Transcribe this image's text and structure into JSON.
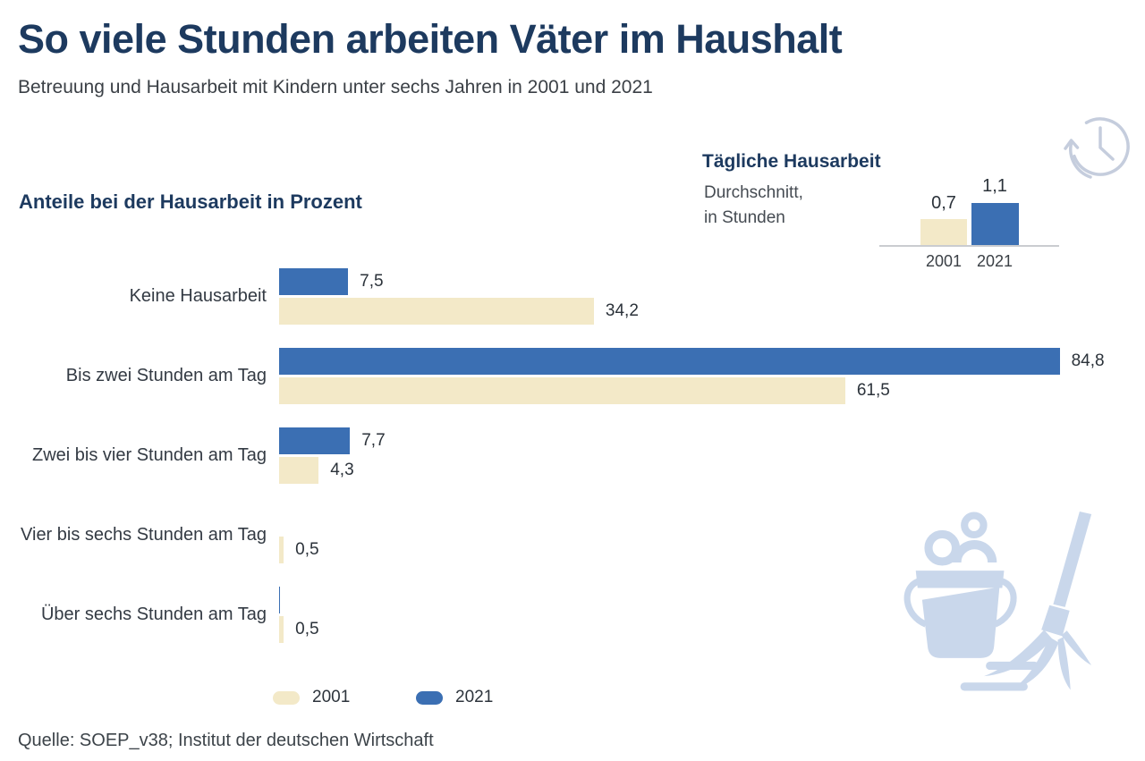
{
  "page": {
    "title": "So viele Stunden arbeiten Väter im Haushalt",
    "subtitle": "Betreuung und Hausarbeit mit Kindern unter sechs Jahren in 2001 und 2021",
    "source": "Quelle: SOEP_v38; Institut der deutschen Wirtschaft"
  },
  "colors": {
    "navy_heading": "#1d3a5f",
    "bar_blue_2021": "#3b6fb3",
    "bar_cream_2001": "#f3e9c8",
    "decorative_light_blue": "#c9d7eb",
    "clock_stroke": "#c5cddd",
    "baseline_gray": "#caccd0",
    "text_dark": "#2b323a",
    "text_gray": "#3b4046"
  },
  "legend": {
    "items": [
      {
        "label": "2001",
        "color": "#f3e9c8"
      },
      {
        "label": "2021",
        "color": "#3b6fb3"
      }
    ]
  },
  "chart_data": [
    {
      "type": "bar",
      "orientation": "horizontal",
      "title": "Anteile bei der Hausarbeit in Prozent",
      "unit": "Prozent",
      "categories": [
        "Keine Hausarbeit",
        "Bis zwei Stunden am Tag",
        "Zwei bis vier Stunden am Tag",
        "Vier bis sechs Stunden am Tag",
        "Über sechs Stunden am Tag"
      ],
      "series": [
        {
          "name": "2021",
          "color": "#3b6fb3",
          "values": [
            7.5,
            84.8,
            7.7,
            0,
            0.1
          ],
          "value_labels": [
            "7,5",
            "84,8",
            "7,7",
            "",
            ""
          ]
        },
        {
          "name": "2001",
          "color": "#f3e9c8",
          "values": [
            34.2,
            61.5,
            4.3,
            0.5,
            0.5
          ],
          "value_labels": [
            "34,2",
            "61,5",
            "4,3",
            "0,5",
            "0,5"
          ]
        }
      ],
      "xlim": [
        0,
        100
      ],
      "grid": false,
      "legend_position": "bottom"
    },
    {
      "type": "bar",
      "orientation": "vertical",
      "title": "Tägliche Hausarbeit",
      "subtitle_line1": "Durchschnitt,",
      "subtitle_line2": "in Stunden",
      "categories": [
        "2001",
        "2021"
      ],
      "values": [
        0.7,
        1.1
      ],
      "value_labels": [
        "0,7",
        "1,1"
      ],
      "colors": [
        "#f3e9c8",
        "#3b6fb3"
      ],
      "grid": false
    }
  ]
}
